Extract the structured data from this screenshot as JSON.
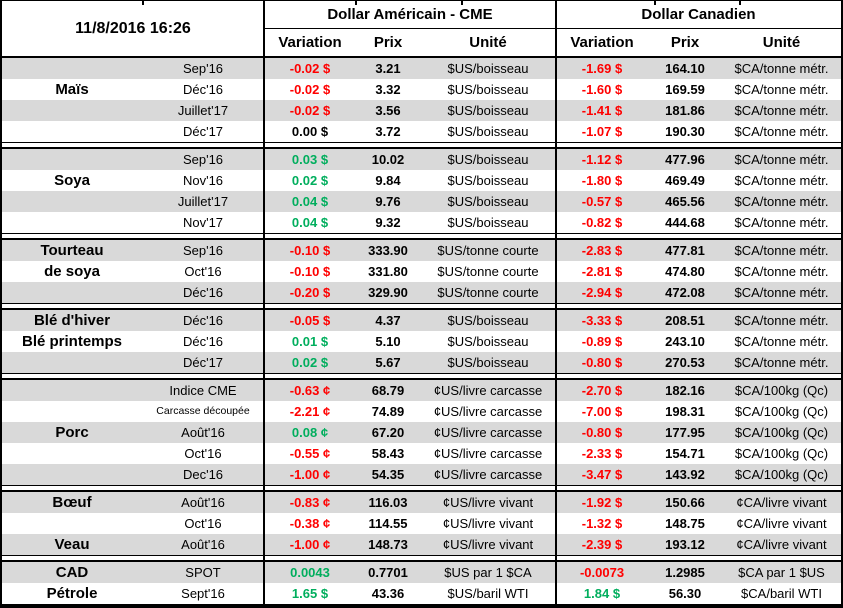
{
  "meta": {
    "timestamp": "11/8/2016 16:26"
  },
  "header": {
    "usd_section": "Dollar Américain - CME",
    "cad_section": "Dollar Canadien",
    "subcolumns": {
      "variation": "Variation",
      "price": "Prix",
      "unit": "Unité"
    }
  },
  "colors": {
    "negative": "#ff0000",
    "positive": "#00ae5d",
    "neutral": "#000000",
    "stripe": "#d9d9d9"
  },
  "groups": [
    {
      "name": "Maïs",
      "rows": [
        {
          "label": "",
          "month": "Sep'16",
          "us_variation": "-0.02 $",
          "us_variation_color": "negative",
          "us_price": "3.21",
          "us_unit": "$US/boisseau",
          "ca_variation": "-1.69 $",
          "ca_variation_color": "negative",
          "ca_price": "164.10",
          "ca_unit": "$CA/tonne métr."
        },
        {
          "label": "Maïs",
          "month": "Déc'16",
          "us_variation": "-0.02 $",
          "us_variation_color": "negative",
          "us_price": "3.32",
          "us_unit": "$US/boisseau",
          "ca_variation": "-1.60 $",
          "ca_variation_color": "negative",
          "ca_price": "169.59",
          "ca_unit": "$CA/tonne métr."
        },
        {
          "label": "",
          "month": "Juillet'17",
          "us_variation": "-0.02 $",
          "us_variation_color": "negative",
          "us_price": "3.56",
          "us_unit": "$US/boisseau",
          "ca_variation": "-1.41 $",
          "ca_variation_color": "negative",
          "ca_price": "181.86",
          "ca_unit": "$CA/tonne métr."
        },
        {
          "label": "",
          "month": "Déc'17",
          "us_variation": "0.00 $",
          "us_variation_color": "neutral",
          "us_price": "3.72",
          "us_unit": "$US/boisseau",
          "ca_variation": "-1.07 $",
          "ca_variation_color": "negative",
          "ca_price": "190.30",
          "ca_unit": "$CA/tonne métr."
        }
      ]
    },
    {
      "name": "Soya",
      "rows": [
        {
          "label": "",
          "month": "Sep'16",
          "us_variation": "0.03 $",
          "us_variation_color": "positive",
          "us_price": "10.02",
          "us_unit": "$US/boisseau",
          "ca_variation": "-1.12 $",
          "ca_variation_color": "negative",
          "ca_price": "477.96",
          "ca_unit": "$CA/tonne métr."
        },
        {
          "label": "Soya",
          "month": "Nov'16",
          "us_variation": "0.02 $",
          "us_variation_color": "positive",
          "us_price": "9.84",
          "us_unit": "$US/boisseau",
          "ca_variation": "-1.80 $",
          "ca_variation_color": "negative",
          "ca_price": "469.49",
          "ca_unit": "$CA/tonne métr."
        },
        {
          "label": "",
          "month": "Juillet'17",
          "us_variation": "0.04 $",
          "us_variation_color": "positive",
          "us_price": "9.76",
          "us_unit": "$US/boisseau",
          "ca_variation": "-0.57 $",
          "ca_variation_color": "negative",
          "ca_price": "465.56",
          "ca_unit": "$CA/tonne métr."
        },
        {
          "label": "",
          "month": "Nov'17",
          "us_variation": "0.04 $",
          "us_variation_color": "positive",
          "us_price": "9.32",
          "us_unit": "$US/boisseau",
          "ca_variation": "-0.82 $",
          "ca_variation_color": "negative",
          "ca_price": "444.68",
          "ca_unit": "$CA/tonne métr."
        }
      ]
    },
    {
      "name": "Tourteau de soya",
      "rows": [
        {
          "label": "Tourteau",
          "month": "Sep'16",
          "us_variation": "-0.10 $",
          "us_variation_color": "negative",
          "us_price": "333.90",
          "us_unit": "$US/tonne courte",
          "ca_variation": "-2.83 $",
          "ca_variation_color": "negative",
          "ca_price": "477.81",
          "ca_unit": "$CA/tonne métr."
        },
        {
          "label": "de soya",
          "month": "Oct'16",
          "us_variation": "-0.10 $",
          "us_variation_color": "negative",
          "us_price": "331.80",
          "us_unit": "$US/tonne courte",
          "ca_variation": "-2.81 $",
          "ca_variation_color": "negative",
          "ca_price": "474.80",
          "ca_unit": "$CA/tonne métr."
        },
        {
          "label": "",
          "month": "Déc'16",
          "us_variation": "-0.20 $",
          "us_variation_color": "negative",
          "us_price": "329.90",
          "us_unit": "$US/tonne courte",
          "ca_variation": "-2.94 $",
          "ca_variation_color": "negative",
          "ca_price": "472.08",
          "ca_unit": "$CA/tonne métr."
        }
      ]
    },
    {
      "name": "Blé",
      "rows": [
        {
          "label": "Blé d'hiver",
          "month": "Déc'16",
          "us_variation": "-0.05 $",
          "us_variation_color": "negative",
          "us_price": "4.37",
          "us_unit": "$US/boisseau",
          "ca_variation": "-3.33 $",
          "ca_variation_color": "negative",
          "ca_price": "208.51",
          "ca_unit": "$CA/tonne métr."
        },
        {
          "label": "Blé printemps",
          "month": "Déc'16",
          "us_variation": "0.01 $",
          "us_variation_color": "positive",
          "us_price": "5.10",
          "us_unit": "$US/boisseau",
          "ca_variation": "-0.89 $",
          "ca_variation_color": "negative",
          "ca_price": "243.10",
          "ca_unit": "$CA/tonne métr."
        },
        {
          "label": "",
          "month": "Déc'17",
          "us_variation": "0.02 $",
          "us_variation_color": "positive",
          "us_price": "5.67",
          "us_unit": "$US/boisseau",
          "ca_variation": "-0.80 $",
          "ca_variation_color": "negative",
          "ca_price": "270.53",
          "ca_unit": "$CA/tonne métr."
        }
      ]
    },
    {
      "name": "Porc",
      "rows": [
        {
          "label": "",
          "month": "Indice CME",
          "us_variation": "-0.63 ¢",
          "us_variation_color": "negative",
          "us_price": "68.79",
          "us_unit": "¢US/livre carcasse",
          "ca_variation": "-2.70 $",
          "ca_variation_color": "negative",
          "ca_price": "182.16",
          "ca_unit": "$CA/100kg (Qc)"
        },
        {
          "label": "",
          "month": "Carcasse découpée",
          "month_small": true,
          "us_variation": "-2.21 ¢",
          "us_variation_color": "negative",
          "us_price": "74.89",
          "us_unit": "¢US/livre carcasse",
          "ca_variation": "-7.00 $",
          "ca_variation_color": "negative",
          "ca_price": "198.31",
          "ca_unit": "$CA/100kg (Qc)"
        },
        {
          "label": "Porc",
          "month": "Août'16",
          "us_variation": "0.08 ¢",
          "us_variation_color": "positive",
          "us_price": "67.20",
          "us_unit": "¢US/livre carcasse",
          "ca_variation": "-0.80 $",
          "ca_variation_color": "negative",
          "ca_price": "177.95",
          "ca_unit": "$CA/100kg (Qc)"
        },
        {
          "label": "",
          "month": "Oct'16",
          "us_variation": "-0.55 ¢",
          "us_variation_color": "negative",
          "us_price": "58.43",
          "us_unit": "¢US/livre carcasse",
          "ca_variation": "-2.33 $",
          "ca_variation_color": "negative",
          "ca_price": "154.71",
          "ca_unit": "$CA/100kg (Qc)"
        },
        {
          "label": "",
          "month": "Dec'16",
          "us_variation": "-1.00 ¢",
          "us_variation_color": "negative",
          "us_price": "54.35",
          "us_unit": "¢US/livre carcasse",
          "ca_variation": "-3.47 $",
          "ca_variation_color": "negative",
          "ca_price": "143.92",
          "ca_unit": "$CA/100kg (Qc)"
        }
      ]
    },
    {
      "name": "Bœuf / Veau",
      "rows": [
        {
          "label": "Bœuf",
          "month": "Août'16",
          "us_variation": "-0.83 ¢",
          "us_variation_color": "negative",
          "us_price": "116.03",
          "us_unit": "¢US/livre vivant",
          "ca_variation": "-1.92 $",
          "ca_variation_color": "negative",
          "ca_price": "150.66",
          "ca_unit": "¢CA/livre vivant"
        },
        {
          "label": "",
          "month": "Oct'16",
          "us_variation": "-0.38 ¢",
          "us_variation_color": "negative",
          "us_price": "114.55",
          "us_unit": "¢US/livre vivant",
          "ca_variation": "-1.32 $",
          "ca_variation_color": "negative",
          "ca_price": "148.75",
          "ca_unit": "¢CA/livre vivant"
        },
        {
          "label": "Veau",
          "month": "Août'16",
          "us_variation": "-1.00 ¢",
          "us_variation_color": "negative",
          "us_price": "148.73",
          "us_unit": "¢US/livre vivant",
          "ca_variation": "-2.39 $",
          "ca_variation_color": "negative",
          "ca_price": "193.12",
          "ca_unit": "¢CA/livre vivant"
        }
      ]
    },
    {
      "name": "CAD / Pétrole",
      "rows": [
        {
          "label": "CAD",
          "month": "SPOT",
          "us_variation": "0.0043",
          "us_variation_color": "positive",
          "us_price": "0.7701",
          "us_unit": "$US par 1 $CA",
          "ca_variation": "-0.0073",
          "ca_variation_color": "negative",
          "ca_price": "1.2985",
          "ca_unit": "$CA par 1 $US"
        },
        {
          "label": "Pétrole",
          "month": "Sept'16",
          "us_variation": "1.65 $",
          "us_variation_color": "positive",
          "us_price": "43.36",
          "us_unit": "$US/baril WTI",
          "ca_variation": "1.84 $",
          "ca_variation_color": "positive",
          "ca_price": "56.30",
          "ca_unit": "$CA/baril WTI"
        }
      ]
    }
  ]
}
